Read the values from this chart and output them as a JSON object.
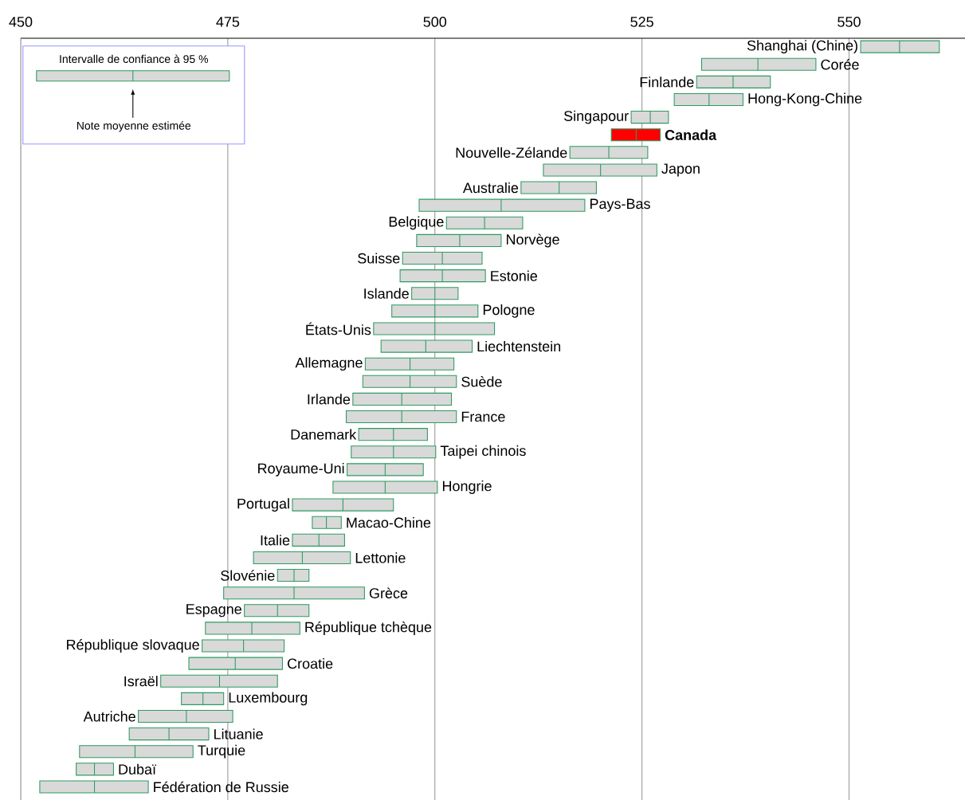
{
  "chart_data": {
    "type": "box",
    "orientation": "horizontal",
    "categories": [
      "Shanghai (Chine)",
      "Corée",
      "Finlande",
      "Hong-Kong-Chine",
      "Singapour",
      "Canada",
      "Nouvelle-Zélande",
      "Japon",
      "Australie",
      "Pays-Bas",
      "Belgique",
      "Norvège",
      "Suisse",
      "Estonie",
      "Islande",
      "Pologne",
      "États-Unis",
      "Liechtenstein",
      "Allemagne",
      "Suède",
      "Irlande",
      "France",
      "Danemark",
      "Taipei chinois",
      "Royaume-Uni",
      "Hongrie",
      "Portugal",
      "Macao-Chine",
      "Italie",
      "Lettonie",
      "Slovénie",
      "Grèce",
      "Espagne",
      "République tchèque",
      "République slovaque",
      "Croatie",
      "Israël",
      "Luxembourg",
      "Autriche",
      "Lituanie",
      "Turquie",
      "Dubaï",
      "Fédération de Russie"
    ],
    "series": [
      {
        "color": "#d9d9d9",
        "colors": [
          "#d9d9d9",
          "#d9d9d9",
          "#d9d9d9",
          "#d9d9d9",
          "#d9d9d9",
          "#ff0000",
          "#d9d9d9",
          "#d9d9d9",
          "#d9d9d9",
          "#d9d9d9",
          "#d9d9d9",
          "#d9d9d9",
          "#d9d9d9",
          "#d9d9d9",
          "#d9d9d9",
          "#d9d9d9",
          "#d9d9d9",
          "#d9d9d9",
          "#d9d9d9",
          "#d9d9d9",
          "#d9d9d9",
          "#d9d9d9",
          "#d9d9d9",
          "#d9d9d9",
          "#d9d9d9",
          "#d9d9d9",
          "#d9d9d9",
          "#d9d9d9",
          "#d9d9d9",
          "#d9d9d9",
          "#d9d9d9",
          "#d9d9d9",
          "#d9d9d9",
          "#d9d9d9",
          "#d9d9d9",
          "#d9d9d9",
          "#d9d9d9",
          "#d9d9d9",
          "#d9d9d9",
          "#d9d9d9",
          "#d9d9d9",
          "#d9d9d9",
          "#d9d9d9"
        ],
        "boxes": [
          {
            "low": 551.4,
            "q1": 551.4,
            "median": 556.1,
            "q3": 560.9,
            "high": 560.9
          },
          {
            "low": 532.2,
            "q1": 532.2,
            "median": 539.0,
            "q3": 546.0,
            "high": 546.0
          },
          {
            "low": 531.6,
            "q1": 531.6,
            "median": 536.0,
            "q3": 540.5,
            "high": 540.5
          },
          {
            "low": 528.9,
            "q1": 528.9,
            "median": 533.1,
            "q3": 537.2,
            "high": 537.2
          },
          {
            "low": 523.7,
            "q1": 523.7,
            "median": 526.0,
            "q3": 528.2,
            "high": 528.2
          },
          {
            "low": 521.3,
            "q1": 521.3,
            "median": 524.3,
            "q3": 527.2,
            "high": 527.2
          },
          {
            "low": 516.3,
            "q1": 516.3,
            "median": 521.0,
            "q3": 525.7,
            "high": 525.7
          },
          {
            "low": 513.1,
            "q1": 513.1,
            "median": 520.0,
            "q3": 526.8,
            "high": 526.8
          },
          {
            "low": 510.4,
            "q1": 510.4,
            "median": 515.0,
            "q3": 519.5,
            "high": 519.5
          },
          {
            "low": 498.1,
            "q1": 498.1,
            "median": 508.0,
            "q3": 518.1,
            "high": 518.1
          },
          {
            "low": 501.4,
            "q1": 501.4,
            "median": 506.0,
            "q3": 510.6,
            "high": 510.6
          },
          {
            "low": 497.8,
            "q1": 497.8,
            "median": 503.0,
            "q3": 508.0,
            "high": 508.0
          },
          {
            "low": 496.1,
            "q1": 496.1,
            "median": 500.9,
            "q3": 505.7,
            "high": 505.7
          },
          {
            "low": 495.8,
            "q1": 495.8,
            "median": 500.9,
            "q3": 506.1,
            "high": 506.1
          },
          {
            "low": 497.2,
            "q1": 497.2,
            "median": 500.0,
            "q3": 502.8,
            "high": 502.8
          },
          {
            "low": 494.8,
            "q1": 494.8,
            "median": 500.0,
            "q3": 505.2,
            "high": 505.2
          },
          {
            "low": 492.6,
            "q1": 492.6,
            "median": 500.0,
            "q3": 507.2,
            "high": 507.2
          },
          {
            "low": 493.5,
            "q1": 493.5,
            "median": 498.9,
            "q3": 504.5,
            "high": 504.5
          },
          {
            "low": 491.6,
            "q1": 491.6,
            "median": 497.0,
            "q3": 502.3,
            "high": 502.3
          },
          {
            "low": 491.3,
            "q1": 491.3,
            "median": 497.0,
            "q3": 502.6,
            "high": 502.6
          },
          {
            "low": 490.1,
            "q1": 490.1,
            "median": 496.0,
            "q3": 502.0,
            "high": 502.0
          },
          {
            "low": 489.3,
            "q1": 489.3,
            "median": 496.0,
            "q3": 502.6,
            "high": 502.6
          },
          {
            "low": 490.8,
            "q1": 490.8,
            "median": 495.0,
            "q3": 499.1,
            "high": 499.1
          },
          {
            "low": 489.9,
            "q1": 489.9,
            "median": 495.0,
            "q3": 500.1,
            "high": 500.1
          },
          {
            "low": 489.4,
            "q1": 489.4,
            "median": 494.0,
            "q3": 498.6,
            "high": 498.6
          },
          {
            "low": 487.7,
            "q1": 487.7,
            "median": 494.0,
            "q3": 500.3,
            "high": 500.3
          },
          {
            "low": 482.8,
            "q1": 482.8,
            "median": 488.9,
            "q3": 495.0,
            "high": 495.0
          },
          {
            "low": 485.2,
            "q1": 485.2,
            "median": 486.9,
            "q3": 488.7,
            "high": 488.7
          },
          {
            "low": 482.8,
            "q1": 482.8,
            "median": 486.0,
            "q3": 489.1,
            "high": 489.1
          },
          {
            "low": 478.1,
            "q1": 478.1,
            "median": 484.0,
            "q3": 489.8,
            "high": 489.8
          },
          {
            "low": 481.0,
            "q1": 481.0,
            "median": 483.0,
            "q3": 484.8,
            "high": 484.8
          },
          {
            "low": 474.5,
            "q1": 474.5,
            "median": 483.0,
            "q3": 491.5,
            "high": 491.5
          },
          {
            "low": 477.0,
            "q1": 477.0,
            "median": 481.0,
            "q3": 484.8,
            "high": 484.8
          },
          {
            "low": 472.3,
            "q1": 472.3,
            "median": 477.9,
            "q3": 483.7,
            "high": 483.7
          },
          {
            "low": 471.9,
            "q1": 471.9,
            "median": 476.9,
            "q3": 481.8,
            "high": 481.8
          },
          {
            "low": 470.3,
            "q1": 470.3,
            "median": 475.9,
            "q3": 481.6,
            "high": 481.6
          },
          {
            "low": 466.9,
            "q1": 466.9,
            "median": 474.0,
            "q3": 481.0,
            "high": 481.0
          },
          {
            "low": 469.4,
            "q1": 469.4,
            "median": 472.0,
            "q3": 474.5,
            "high": 474.5
          },
          {
            "low": 464.2,
            "q1": 464.2,
            "median": 470.0,
            "q3": 475.6,
            "high": 475.6
          },
          {
            "low": 463.1,
            "q1": 463.1,
            "median": 467.9,
            "q3": 472.7,
            "high": 472.7
          },
          {
            "low": 457.1,
            "q1": 457.1,
            "median": 463.8,
            "q3": 470.8,
            "high": 470.8
          },
          {
            "low": 456.7,
            "q1": 456.7,
            "median": 458.9,
            "q3": 461.2,
            "high": 461.2
          },
          {
            "low": 452.3,
            "q1": 452.3,
            "median": 458.9,
            "q3": 465.4,
            "high": 465.4
          }
        ]
      }
    ],
    "xlim": [
      450,
      564
    ],
    "xticks": [
      450,
      475,
      500,
      525,
      550
    ],
    "grid": "x",
    "annotations": [
      "Intervalle de confiance à 95 %",
      "Note moyenne estimée"
    ]
  }
}
